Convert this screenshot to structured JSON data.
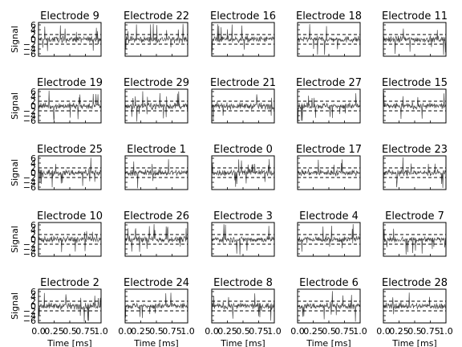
{
  "chart_data": {
    "type": "line",
    "layout": "5x5 grid of small multiples, shared x and y axes",
    "xlabel": "Time [ms]",
    "ylabel": "Signal",
    "xlim": [
      0.0,
      1.0
    ],
    "ylim": [
      -7,
      7
    ],
    "xticks": [
      "0.0",
      "0.25",
      "0.5",
      "0.75",
      "1.0"
    ],
    "yticks": [
      "6",
      "4",
      "2",
      "0",
      "−2",
      "−4",
      "−6"
    ],
    "ytick_values": [
      6,
      4,
      2,
      0,
      -2,
      -4,
      -6
    ],
    "threshold_lines": [
      2,
      -2
    ],
    "threshold_style": "dashed",
    "series_color": "#4a4a4a",
    "panels": [
      {
        "title": "Electrode 9"
      },
      {
        "title": "Electrode 22"
      },
      {
        "title": "Electrode 16"
      },
      {
        "title": "Electrode 18"
      },
      {
        "title": "Electrode 11"
      },
      {
        "title": "Electrode 19"
      },
      {
        "title": "Electrode 29"
      },
      {
        "title": "Electrode 21"
      },
      {
        "title": "Electrode 27"
      },
      {
        "title": "Electrode 15"
      },
      {
        "title": "Electrode 25"
      },
      {
        "title": "Electrode 1"
      },
      {
        "title": "Electrode 0"
      },
      {
        "title": "Electrode 17"
      },
      {
        "title": "Electrode 23"
      },
      {
        "title": "Electrode 10"
      },
      {
        "title": "Electrode 26"
      },
      {
        "title": "Electrode 3"
      },
      {
        "title": "Electrode 4"
      },
      {
        "title": "Electrode 7"
      },
      {
        "title": "Electrode 2"
      },
      {
        "title": "Electrode 24"
      },
      {
        "title": "Electrode 8"
      },
      {
        "title": "Electrode 6"
      },
      {
        "title": "Electrode 28"
      }
    ]
  }
}
